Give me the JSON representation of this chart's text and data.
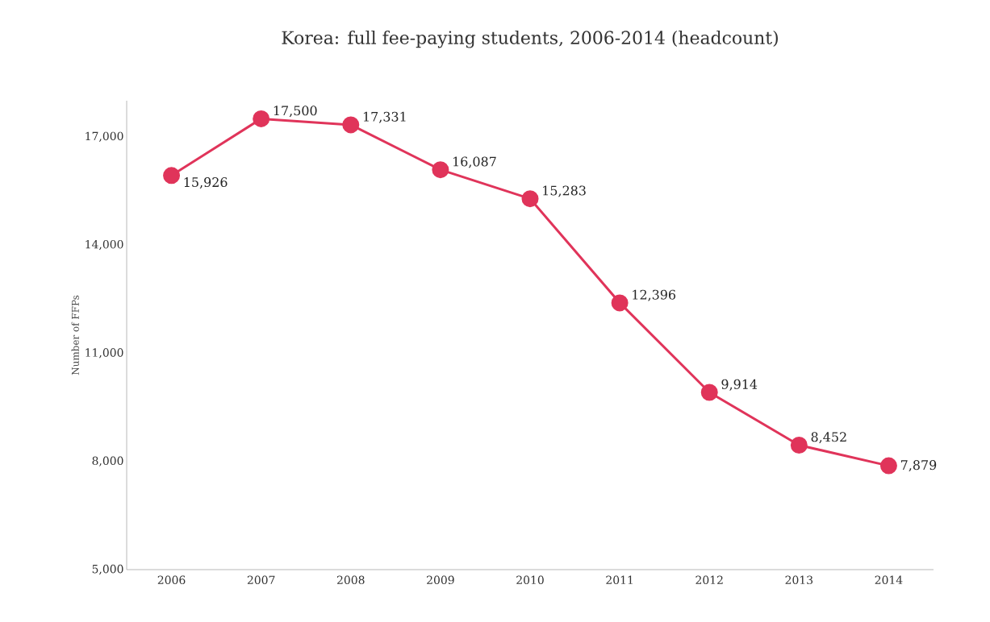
{
  "chart_data": {
    "type": "line",
    "title": "Korea: full fee-paying students, 2006-2014 (headcount)",
    "ylabel": "Number of FFPs",
    "categories": [
      "2006",
      "2007",
      "2008",
      "2009",
      "2010",
      "2011",
      "2012",
      "2013",
      "2014"
    ],
    "series": [
      {
        "color": "#e0345a",
        "values": [
          15926,
          17500,
          17331,
          16087,
          15283,
          12396,
          9914,
          8452,
          7879
        ],
        "value_labels": [
          "15,926",
          "17,500",
          "17,331",
          "16,087",
          "15,283",
          "12,396",
          "9,914",
          "8,452",
          "7,879"
        ]
      }
    ],
    "ylim": [
      5000,
      18000
    ],
    "yticks": [
      {
        "value": 5000,
        "label": "5,000"
      },
      {
        "value": 8000,
        "label": "8,000"
      },
      {
        "value": 11000,
        "label": "11,000"
      },
      {
        "value": 14000,
        "label": "14,000"
      },
      {
        "value": 17000,
        "label": "17,000"
      }
    ],
    "grid": false,
    "marker": "circle",
    "line_style": "solid"
  }
}
